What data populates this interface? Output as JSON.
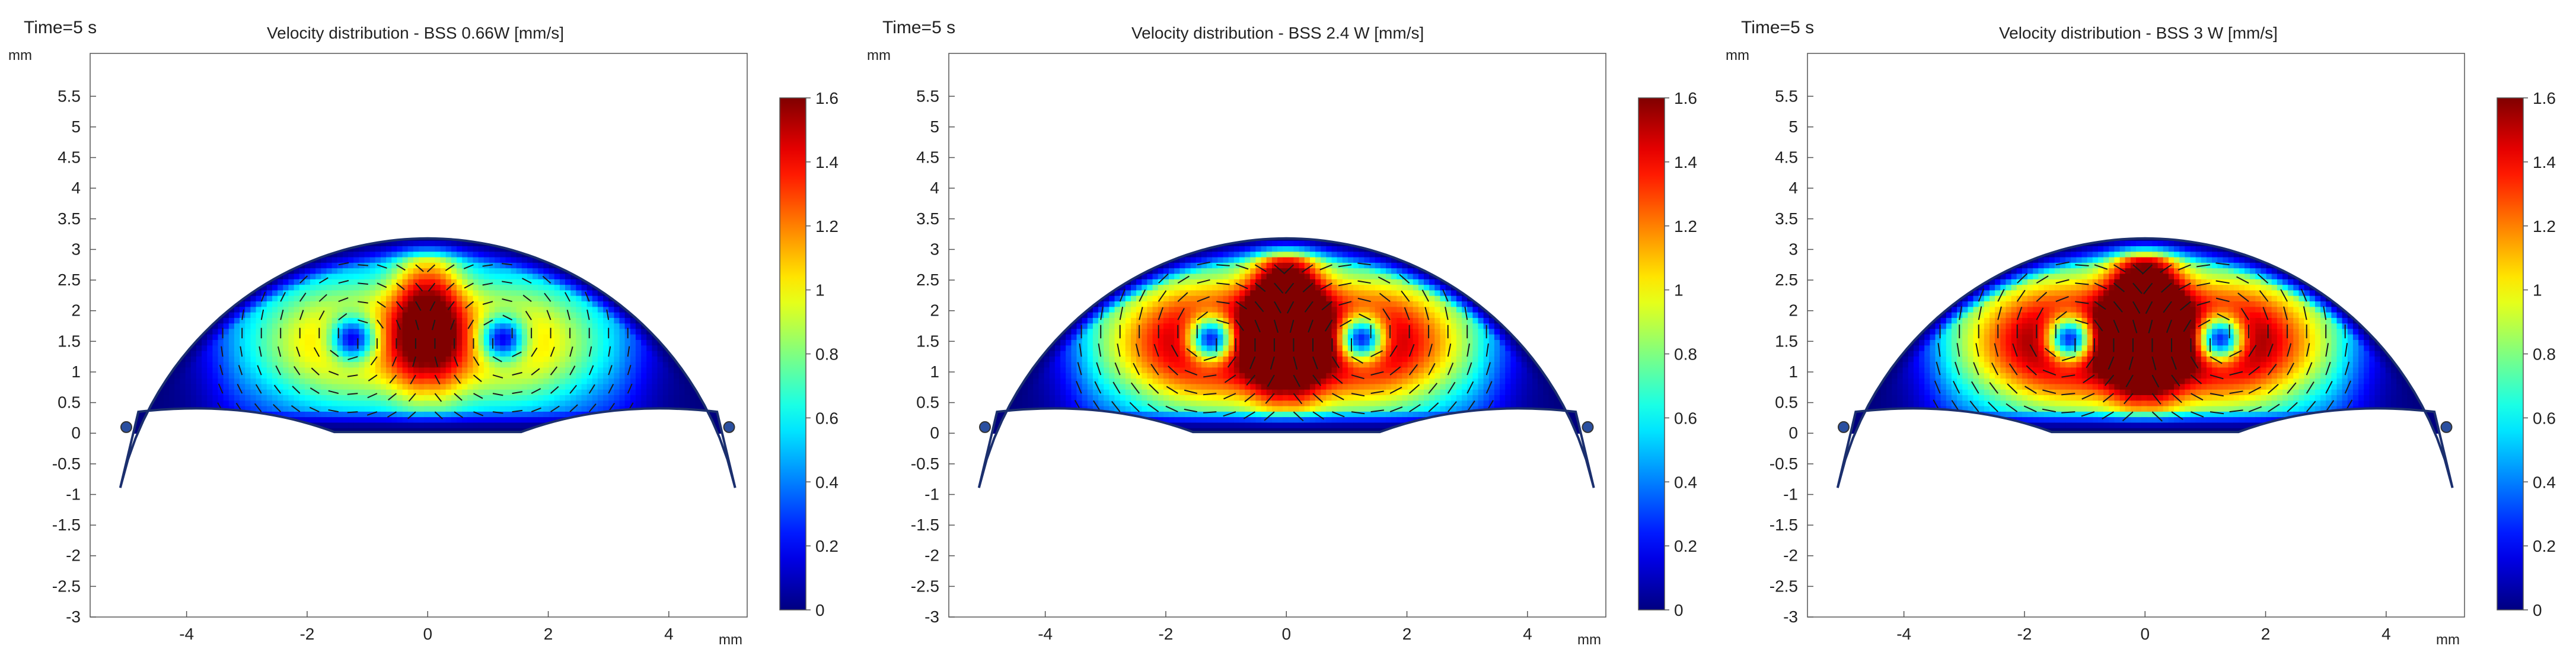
{
  "chart_data": [
    {
      "type": "heatmap",
      "time_label": "Time=5 s",
      "title": "Velocity distribution - BSS 0.66W [mm/s]",
      "xlabel": "mm",
      "ylabel": "mm",
      "xlim": [
        -5.6,
        5.3
      ],
      "ylim": [
        -3,
        6.2
      ],
      "x_ticks": [
        "-4",
        "-2",
        "0",
        "2",
        "4"
      ],
      "x_tick_values": [
        -4,
        -2,
        0,
        2,
        4
      ],
      "y_ticks": [
        "5.5",
        "5",
        "4.5",
        "4",
        "3.5",
        "3",
        "2.5",
        "2",
        "1.5",
        "1",
        "0.5",
        "0",
        "-0.5",
        "-1",
        "-1.5",
        "-2",
        "-2.5",
        "-3"
      ],
      "y_tick_values": [
        5.5,
        5,
        4.5,
        4,
        3.5,
        3,
        2.5,
        2,
        1.5,
        1,
        0.5,
        0,
        -0.5,
        -1,
        -1.5,
        -2,
        -2.5,
        -3
      ],
      "colorbar": {
        "min": 0,
        "max": 1.6,
        "ticks": [
          "1.6",
          "1.4",
          "1.2",
          "1",
          "0.8",
          "0.6",
          "0.4",
          "0.2",
          "0"
        ],
        "tick_values": [
          1.6,
          1.4,
          1.2,
          1,
          0.8,
          0.6,
          0.4,
          0.2,
          0
        ],
        "colormap": "jet"
      },
      "intensity": 0.7
    },
    {
      "type": "heatmap",
      "time_label": "Time=5 s",
      "title": "Velocity distribution - BSS 2.4 W [mm/s]",
      "xlabel": "mm",
      "ylabel": "mm",
      "xlim": [
        -5.6,
        5.3
      ],
      "ylim": [
        -3,
        6.2
      ],
      "x_ticks": [
        "-4",
        "-2",
        "0",
        "2",
        "4"
      ],
      "x_tick_values": [
        -4,
        -2,
        0,
        2,
        4
      ],
      "y_ticks": [
        "5.5",
        "5",
        "4.5",
        "4",
        "3.5",
        "3",
        "2.5",
        "2",
        "1.5",
        "1",
        "0.5",
        "0",
        "-0.5",
        "-1",
        "-1.5",
        "-2",
        "-2.5",
        "-3"
      ],
      "y_tick_values": [
        5.5,
        5,
        4.5,
        4,
        3.5,
        3,
        2.5,
        2,
        1.5,
        1,
        0.5,
        0,
        -0.5,
        -1,
        -1.5,
        -2,
        -2.5,
        -3
      ],
      "colorbar": {
        "min": 0,
        "max": 1.6,
        "ticks": [
          "1.6",
          "1.4",
          "1.2",
          "1",
          "0.8",
          "0.6",
          "0.4",
          "0.2",
          "0"
        ],
        "tick_values": [
          1.6,
          1.4,
          1.2,
          1,
          0.8,
          0.6,
          0.4,
          0.2,
          0
        ],
        "colormap": "jet"
      },
      "intensity": 1.0
    },
    {
      "type": "heatmap",
      "time_label": "Time=5 s",
      "title": "Velocity distribution - BSS 3 W [mm/s]",
      "xlabel": "mm",
      "ylabel": "mm",
      "xlim": [
        -5.6,
        5.3
      ],
      "ylim": [
        -3,
        6.2
      ],
      "x_ticks": [
        "-4",
        "-2",
        "0",
        "2",
        "4"
      ],
      "x_tick_values": [
        -4,
        -2,
        0,
        2,
        4
      ],
      "y_ticks": [
        "5.5",
        "5",
        "4.5",
        "4",
        "3.5",
        "3",
        "2.5",
        "2",
        "1.5",
        "1",
        "0.5",
        "0",
        "-0.5",
        "-1",
        "-1.5",
        "-2",
        "-2.5",
        "-3"
      ],
      "y_tick_values": [
        5.5,
        5,
        4.5,
        4,
        3.5,
        3,
        2.5,
        2,
        1.5,
        1,
        0.5,
        0,
        -0.5,
        -1,
        -1.5,
        -2,
        -2.5,
        -3
      ],
      "colorbar": {
        "min": 0,
        "max": 1.6,
        "ticks": [
          "1.6",
          "1.4",
          "1.2",
          "1",
          "0.8",
          "0.6",
          "0.4",
          "0.2",
          "0"
        ],
        "tick_values": [
          1.6,
          1.4,
          1.2,
          1,
          0.8,
          0.6,
          0.4,
          0.2,
          0
        ],
        "colormap": "jet"
      },
      "intensity": 1.05
    }
  ]
}
